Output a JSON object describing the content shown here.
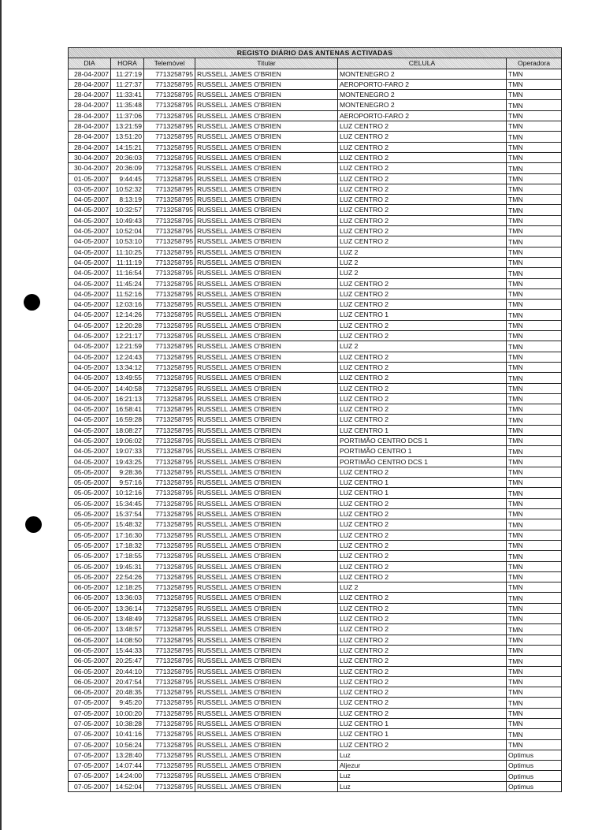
{
  "document": {
    "title": "REGISTO DIÁRIO DAS ANTENAS ACTIVADAS",
    "columns": [
      "DIA",
      "HORA",
      "Telemóvel",
      "Titular",
      "CELULA",
      "Operadora"
    ],
    "rows": [
      [
        "28-04-2007",
        "11:27:19",
        "7713258795",
        "RUSSELL JAMES O'BRIEN",
        "MONTENEGRO 2",
        "TMN"
      ],
      [
        "28-04-2007",
        "11:27:37",
        "7713258795",
        "RUSSELL JAMES O'BRIEN",
        "AEROPORTO-FARO 2",
        "TMN"
      ],
      [
        "28-04-2007",
        "11:33:41",
        "7713258795",
        "RUSSELL JAMES O'BRIEN",
        "MONTENEGRO 2",
        "TMN"
      ],
      [
        "28-04-2007",
        "11:35:48",
        "7713258795",
        "RUSSELL JAMES O'BRIEN",
        "MONTENEGRO 2",
        "TMN"
      ],
      [
        "28-04-2007",
        "11:37:06",
        "7713258795",
        "RUSSELL JAMES O'BRIEN",
        "AEROPORTO-FARO 2",
        "TMN"
      ],
      [
        "28-04-2007",
        "13:21:59",
        "7713258795",
        "RUSSELL JAMES O'BRIEN",
        "LUZ CENTRO 2",
        "TMN"
      ],
      [
        "28-04-2007",
        "13:51:20",
        "7713258795",
        "RUSSELL JAMES O'BRIEN",
        "LUZ CENTRO 2",
        "TMN"
      ],
      [
        "28-04-2007",
        "14:15:21",
        "7713258795",
        "RUSSELL JAMES O'BRIEN",
        "LUZ CENTRO 2",
        "TMN"
      ],
      [
        "30-04-2007",
        "20:36:03",
        "7713258795",
        "RUSSELL JAMES O'BRIEN",
        "LUZ CENTRO 2",
        "TMN"
      ],
      [
        "30-04-2007",
        "20:36:09",
        "7713258795",
        "RUSSELL JAMES O'BRIEN",
        "LUZ CENTRO 2",
        "TMN"
      ],
      [
        "01-05-2007",
        "9:44:45",
        "7713258795",
        "RUSSELL JAMES O'BRIEN",
        "LUZ CENTRO 2",
        "TMN"
      ],
      [
        "03-05-2007",
        "10:52:32",
        "7713258795",
        "RUSSELL JAMES O'BRIEN",
        "LUZ CENTRO 2",
        "TMN"
      ],
      [
        "04-05-2007",
        "8:13:19",
        "7713258795",
        "RUSSELL JAMES O'BRIEN",
        "LUZ CENTRO 2",
        "TMN"
      ],
      [
        "04-05-2007",
        "10:32:57",
        "7713258795",
        "RUSSELL JAMES O'BRIEN",
        "LUZ CENTRO 2",
        "TMN"
      ],
      [
        "04-05-2007",
        "10:49:43",
        "7713258795",
        "RUSSELL JAMES O'BRIEN",
        "LUZ CENTRO 2",
        "TMN"
      ],
      [
        "04-05-2007",
        "10:52:04",
        "7713258795",
        "RUSSELL JAMES O'BRIEN",
        "LUZ CENTRO 2",
        "TMN"
      ],
      [
        "04-05-2007",
        "10:53:10",
        "7713258795",
        "RUSSELL JAMES O'BRIEN",
        "LUZ CENTRO 2",
        "TMN"
      ],
      [
        "04-05-2007",
        "11:10:25",
        "7713258795",
        "RUSSELL JAMES O'BRIEN",
        "LUZ 2",
        "TMN"
      ],
      [
        "04-05-2007",
        "11:11:19",
        "7713258795",
        "RUSSELL JAMES O'BRIEN",
        "LUZ 2",
        "TMN"
      ],
      [
        "04-05-2007",
        "11:16:54",
        "7713258795",
        "RUSSELL JAMES O'BRIEN",
        "LUZ 2",
        "TMN"
      ],
      [
        "04-05-2007",
        "11:45:24",
        "7713258795",
        "RUSSELL JAMES O'BRIEN",
        "LUZ CENTRO 2",
        "TMN"
      ],
      [
        "04-05-2007",
        "11:52:16",
        "7713258795",
        "RUSSELL JAMES O'BRIEN",
        "LUZ CENTRO 2",
        "TMN"
      ],
      [
        "04-05-2007",
        "12:03:16",
        "7713258795",
        "RUSSELL JAMES O'BRIEN",
        "LUZ CENTRO 2",
        "TMN"
      ],
      [
        "04-05-2007",
        "12:14:26",
        "7713258795",
        "RUSSELL JAMES O'BRIEN",
        "LUZ CENTRO 1",
        "TMN"
      ],
      [
        "04-05-2007",
        "12:20:28",
        "7713258795",
        "RUSSELL JAMES O'BRIEN",
        "LUZ CENTRO 2",
        "TMN"
      ],
      [
        "04-05-2007",
        "12:21:17",
        "7713258795",
        "RUSSELL JAMES O'BRIEN",
        "LUZ CENTRO 2",
        "TMN"
      ],
      [
        "04-05-2007",
        "12:21:59",
        "7713258795",
        "RUSSELL JAMES O'BRIEN",
        "LUZ 2",
        "TMN"
      ],
      [
        "04-05-2007",
        "12:24:43",
        "7713258795",
        "RUSSELL JAMES O'BRIEN",
        "LUZ CENTRO 2",
        "TMN"
      ],
      [
        "04-05-2007",
        "13:34:12",
        "7713258795",
        "RUSSELL JAMES O'BRIEN",
        "LUZ CENTRO 2",
        "TMN"
      ],
      [
        "04-05-2007",
        "13:49:55",
        "7713258795",
        "RUSSELL JAMES O'BRIEN",
        "LUZ CENTRO 2",
        "TMN"
      ],
      [
        "04-05-2007",
        "14:40:58",
        "7713258795",
        "RUSSELL JAMES O'BRIEN",
        "LUZ CENTRO 2",
        "TMN"
      ],
      [
        "04-05-2007",
        "16:21:13",
        "7713258795",
        "RUSSELL JAMES O'BRIEN",
        "LUZ CENTRO 2",
        "TMN"
      ],
      [
        "04-05-2007",
        "16:58:41",
        "7713258795",
        "RUSSELL JAMES O'BRIEN",
        "LUZ CENTRO 2",
        "TMN"
      ],
      [
        "04-05-2007",
        "16:59:28",
        "7713258795",
        "RUSSELL JAMES O'BRIEN",
        "LUZ CENTRO 2",
        "TMN"
      ],
      [
        "04-05-2007",
        "18:08:27",
        "7713258795",
        "RUSSELL JAMES O'BRIEN",
        "LUZ CENTRO 1",
        "TMN"
      ],
      [
        "04-05-2007",
        "19:06:02",
        "7713258795",
        "RUSSELL JAMES O'BRIEN",
        "PORTIMÃO CENTRO DCS 1",
        "TMN"
      ],
      [
        "04-05-2007",
        "19:07:33",
        "7713258795",
        "RUSSELL JAMES O'BRIEN",
        "PORTIMÃO CENTRO 1",
        "TMN"
      ],
      [
        "04-05-2007",
        "19:43:25",
        "7713258795",
        "RUSSELL JAMES O'BRIEN",
        "PORTIMÃO CENTRO DCS 1",
        "TMN"
      ],
      [
        "05-05-2007",
        "9:28:36",
        "7713258795",
        "RUSSELL JAMES O'BRIEN",
        "LUZ CENTRO 2",
        "TMN"
      ],
      [
        "05-05-2007",
        "9:57:16",
        "7713258795",
        "RUSSELL JAMES O'BRIEN",
        "LUZ CENTRO 1",
        "TMN"
      ],
      [
        "05-05-2007",
        "10:12:16",
        "7713258795",
        "RUSSELL JAMES O'BRIEN",
        "LUZ CENTRO 1",
        "TMN"
      ],
      [
        "05-05-2007",
        "15:34:45",
        "7713258795",
        "RUSSELL JAMES O'BRIEN",
        "LUZ CENTRO 2",
        "TMN"
      ],
      [
        "05-05-2007",
        "15:37:54",
        "7713258795",
        "RUSSELL JAMES O'BRIEN",
        "LUZ CENTRO 2",
        "TMN"
      ],
      [
        "05-05-2007",
        "15:48:32",
        "7713258795",
        "RUSSELL JAMES O'BRIEN",
        "LUZ CENTRO 2",
        "TMN"
      ],
      [
        "05-05-2007",
        "17:16:30",
        "7713258795",
        "RUSSELL JAMES O'BRIEN",
        "LUZ CENTRO 2",
        "TMN"
      ],
      [
        "05-05-2007",
        "17:18:32",
        "7713258795",
        "RUSSELL JAMES O'BRIEN",
        "LUZ CENTRO 2",
        "TMN"
      ],
      [
        "05-05-2007",
        "17:18:55",
        "7713258795",
        "RUSSELL JAMES O'BRIEN",
        "LUZ CENTRO 2",
        "TMN"
      ],
      [
        "05-05-2007",
        "19:45:31",
        "7713258795",
        "RUSSELL JAMES O'BRIEN",
        "LUZ CENTRO 2",
        "TMN"
      ],
      [
        "05-05-2007",
        "22:54:26",
        "7713258795",
        "RUSSELL JAMES O'BRIEN",
        "LUZ CENTRO 2",
        "TMN"
      ],
      [
        "06-05-2007",
        "12:18:25",
        "7713258795",
        "RUSSELL JAMES O'BRIEN",
        "LUZ 2",
        "TMN"
      ],
      [
        "06-05-2007",
        "13:36:03",
        "7713258795",
        "RUSSELL JAMES O'BRIEN",
        "LUZ CENTRO 2",
        "TMN"
      ],
      [
        "06-05-2007",
        "13:36:14",
        "7713258795",
        "RUSSELL JAMES O'BRIEN",
        "LUZ CENTRO 2",
        "TMN"
      ],
      [
        "06-05-2007",
        "13:48:49",
        "7713258795",
        "RUSSELL JAMES O'BRIEN",
        "LUZ CENTRO 2",
        "TMN"
      ],
      [
        "06-05-2007",
        "13:48:57",
        "7713258795",
        "RUSSELL JAMES O'BRIEN",
        "LUZ CENTRO 2",
        "TMN"
      ],
      [
        "06-05-2007",
        "14:08:50",
        "7713258795",
        "RUSSELL JAMES O'BRIEN",
        "LUZ CENTRO 2",
        "TMN"
      ],
      [
        "06-05-2007",
        "15:44:33",
        "7713258795",
        "RUSSELL JAMES O'BRIEN",
        "LUZ CENTRO 2",
        "TMN"
      ],
      [
        "06-05-2007",
        "20:25:47",
        "7713258795",
        "RUSSELL JAMES O'BRIEN",
        "LUZ CENTRO 2",
        "TMN"
      ],
      [
        "06-05-2007",
        "20:44:10",
        "7713258795",
        "RUSSELL JAMES O'BRIEN",
        "LUZ CENTRO 2",
        "TMN"
      ],
      [
        "06-05-2007",
        "20:47:54",
        "7713258795",
        "RUSSELL JAMES O'BRIEN",
        "LUZ CENTRO 2",
        "TMN"
      ],
      [
        "06-05-2007",
        "20:48:35",
        "7713258795",
        "RUSSELL JAMES O'BRIEN",
        "LUZ CENTRO 2",
        "TMN"
      ],
      [
        "07-05-2007",
        "9:45:20",
        "7713258795",
        "RUSSELL JAMES O'BRIEN",
        "LUZ CENTRO 2",
        "TMN"
      ],
      [
        "07-05-2007",
        "10:00:20",
        "7713258795",
        "RUSSELL JAMES O'BRIEN",
        "LUZ CENTRO 2",
        "TMN"
      ],
      [
        "07-05-2007",
        "10:38:28",
        "7713258795",
        "RUSSELL JAMES O'BRIEN",
        "LUZ CENTRO 1",
        "TMN"
      ],
      [
        "07-05-2007",
        "10:41:16",
        "7713258795",
        "RUSSELL JAMES O'BRIEN",
        "LUZ CENTRO 1",
        "TMN"
      ],
      [
        "07-05-2007",
        "10:56:24",
        "7713258795",
        "RUSSELL JAMES O'BRIEN",
        "LUZ CENTRO 2",
        "TMN"
      ],
      [
        "07-05-2007",
        "13:28:40",
        "7713258795",
        "RUSSELL JAMES O'BRIEN",
        "Luz",
        "Optimus"
      ],
      [
        "07-05-2007",
        "14:07:44",
        "7713258795",
        "RUSSELL JAMES O'BRIEN",
        "Aljezur",
        "Optimus"
      ],
      [
        "07-05-2007",
        "14:24:00",
        "7713258795",
        "RUSSELL JAMES O'BRIEN",
        "Luz",
        "Optimus"
      ],
      [
        "07-05-2007",
        "14:52:04",
        "7713258795",
        "RUSSELL JAMES O'BRIEN",
        "Luz",
        "Optimus"
      ]
    ]
  },
  "colors": {
    "header_fill": "#d9d9d9",
    "ink": "#111111",
    "punch_hole": "#000000"
  }
}
